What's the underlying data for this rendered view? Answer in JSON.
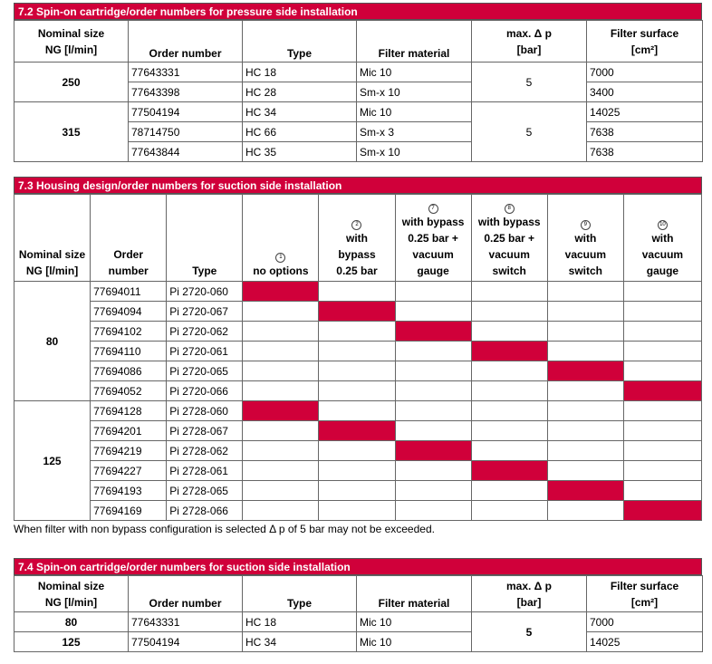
{
  "s1": {
    "title": "7.2 Spin-on cartridge/order numbers for pressure side installation",
    "headers": {
      "ng1": "Nominal size",
      "ng2": "NG [l/min]",
      "order": "Order number",
      "type": "Type",
      "mat": "Filter material",
      "dp1": "max. Δ p",
      "dp2": "[bar]",
      "fs1": "Filter surface",
      "fs2": "[cm²]"
    },
    "groups": [
      {
        "ng": "250",
        "dp": "5",
        "rows": [
          {
            "order": "77643331",
            "type": "HC 18",
            "mat": "Mic 10",
            "fs": "7000"
          },
          {
            "order": "77643398",
            "type": "HC 28",
            "mat": "Sm-x 10",
            "fs": "3400"
          }
        ]
      },
      {
        "ng": "315",
        "dp": "5",
        "rows": [
          {
            "order": "77504194",
            "type": "HC 34",
            "mat": "Mic 10",
            "fs": "14025"
          },
          {
            "order": "78714750",
            "type": "HC 66",
            "mat": "Sm-x 3",
            "fs": "7638"
          },
          {
            "order": "77643844",
            "type": "HC 35",
            "mat": "Sm-x 10",
            "fs": "7638"
          }
        ]
      }
    ]
  },
  "s2": {
    "title": "7.3 Housing design/order numbers for suction side installation",
    "headers": {
      "ng1": "Nominal size",
      "ng2": "NG [l/min]",
      "order1": "Order",
      "order2": "number",
      "type": "Type"
    },
    "options": [
      {
        "num": "1",
        "lines": [
          "no options"
        ]
      },
      {
        "num": "2",
        "lines": [
          "with",
          "bypass",
          "0.25 bar"
        ]
      },
      {
        "num": "7",
        "lines": [
          "with bypass",
          "0.25 bar +",
          "vacuum",
          "gauge"
        ]
      },
      {
        "num": "8",
        "lines": [
          "with bypass",
          "0.25 bar +",
          "vacuum",
          "switch"
        ]
      },
      {
        "num": "9",
        "lines": [
          "with",
          "vacuum",
          "switch"
        ]
      },
      {
        "num": "10",
        "lines": [
          "with",
          "vacuum",
          "gauge"
        ]
      }
    ],
    "groups": [
      {
        "ng": "80",
        "rows": [
          {
            "order": "77694011",
            "type": "Pi 2720-060",
            "option": 1
          },
          {
            "order": "77694094",
            "type": "Pi 2720-067",
            "option": 2
          },
          {
            "order": "77694102",
            "type": "Pi 2720-062",
            "option": 3
          },
          {
            "order": "77694110",
            "type": "Pi 2720-061",
            "option": 4
          },
          {
            "order": "77694086",
            "type": "Pi 2720-065",
            "option": 5
          },
          {
            "order": "77694052",
            "type": "Pi 2720-066",
            "option": 6
          }
        ]
      },
      {
        "ng": "125",
        "rows": [
          {
            "order": "77694128",
            "type": "Pi 2728-060",
            "option": 1
          },
          {
            "order": "77694201",
            "type": "Pi 2728-067",
            "option": 2
          },
          {
            "order": "77694219",
            "type": "Pi 2728-062",
            "option": 3
          },
          {
            "order": "77694227",
            "type": "Pi 2728-061",
            "option": 4
          },
          {
            "order": "77694193",
            "type": "Pi 2728-065",
            "option": 5
          },
          {
            "order": "77694169",
            "type": "Pi 2728-066",
            "option": 6
          }
        ]
      }
    ],
    "highlight_color": "#d0003a"
  },
  "note": "When filter with non bypass configuration is selected Δ p of 5 bar may not be exceeded.",
  "s3": {
    "title": "7.4 Spin-on cartridge/order numbers for suction side installation",
    "headers": {
      "ng1": "Nominal size",
      "ng2": "NG [l/min]",
      "order": "Order number",
      "type": "Type",
      "mat": "Filter material",
      "dp1": "max. Δ p",
      "dp2": "[bar]",
      "fs1": "Filter surface",
      "fs2": "[cm²]"
    },
    "rows": [
      {
        "ng": "80",
        "order": "77643331",
        "type": "HC 18",
        "mat": "Mic 10",
        "fs": "7000"
      },
      {
        "ng": "125",
        "order": "77504194",
        "type": "HC 34",
        "mat": "Mic 10",
        "fs": "14025"
      }
    ],
    "dp": "5"
  }
}
